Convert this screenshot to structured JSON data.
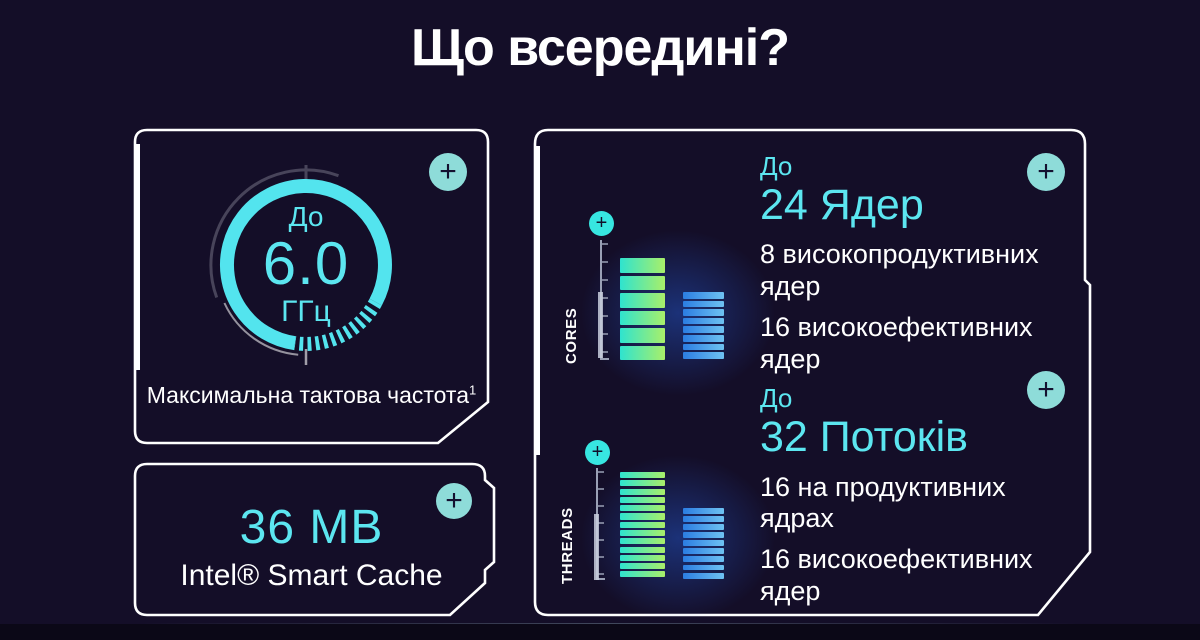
{
  "title": "Що всередині?",
  "ui": {
    "plus": "+"
  },
  "colors": {
    "background": "#140e28",
    "cyan_text": "#5ce6f0",
    "card_border": "#ffffff",
    "plus_button": "#8edcd9",
    "plus_small": "#37e6e1",
    "bar_green_start": "#2fe3cf",
    "bar_green_end": "#a9ef69",
    "bar_blue_start": "#2b7de2",
    "bar_blue_end": "#6ec2f2"
  },
  "frequency_card": {
    "prefix": "До",
    "value": "6.0",
    "unit": "ГГц",
    "caption": "Максимальна тактова частота",
    "caption_note": "1"
  },
  "cache_card": {
    "value": "36 MB",
    "label": "Intel® Smart Cache"
  },
  "cores_threads_card": {
    "cores": {
      "axis_label": "CORES",
      "prefix": "До",
      "headline": "24 Ядер",
      "details": [
        "8 високопродуктивних ядер",
        "16 високоефективних ядер"
      ]
    },
    "threads": {
      "axis_label": "THREADS",
      "prefix": "До",
      "headline": "32 Потоків",
      "details": [
        "16 на продуктивних ядрах",
        "16 високоефективних ядер"
      ]
    }
  },
  "bars": {
    "cores": {
      "p_blocks": 6,
      "e_blocks": 8
    },
    "threads": {
      "p_blocks": 13,
      "e_blocks": 9
    }
  },
  "chart_data": [
    {
      "type": "bar",
      "title": "CORES",
      "categories": [
        "P-cores",
        "E-cores"
      ],
      "values": [
        8,
        16
      ],
      "annotation": "До 24 Ядер"
    },
    {
      "type": "bar",
      "title": "THREADS",
      "categories": [
        "P-threads",
        "E-threads"
      ],
      "values": [
        16,
        16
      ],
      "annotation": "До 32 Потоків"
    }
  ]
}
